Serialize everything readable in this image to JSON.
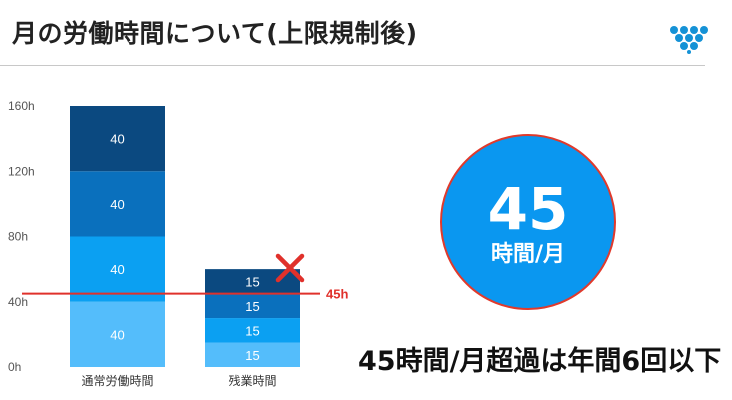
{
  "title": "月の労働時間について(上限規制後)",
  "colors": {
    "segments": [
      "#54bdfb",
      "#0ba0f2",
      "#0a70bd",
      "#0b4980"
    ],
    "limit_line": "#e0312b",
    "cross": "#e0312b",
    "circle_fill": "#0a97f0",
    "circle_border": "#e03a2c",
    "axis_text": "#555555"
  },
  "icons": {
    "logo": "triangle-dots-logo-icon",
    "cross": "cross-mark-icon"
  },
  "chart_data": {
    "type": "bar",
    "stacked": true,
    "categories": [
      "通常労働時間",
      "残業時間"
    ],
    "series": [
      {
        "values": [
          40,
          15
        ]
      },
      {
        "values": [
          40,
          15
        ]
      },
      {
        "values": [
          40,
          15
        ]
      },
      {
        "values": [
          40,
          15
        ]
      }
    ],
    "y_ticks": [
      0,
      40,
      80,
      120,
      160
    ],
    "y_tick_labels": [
      "0h",
      "40h",
      "80h",
      "120h",
      "160h"
    ],
    "ylim": [
      0,
      160
    ],
    "reference_line": {
      "value": 45,
      "label": "45h"
    },
    "grid": false
  },
  "circle": {
    "value": "45",
    "unit": "時間/月"
  },
  "caption": "45時間/月超過は年間6回以下"
}
